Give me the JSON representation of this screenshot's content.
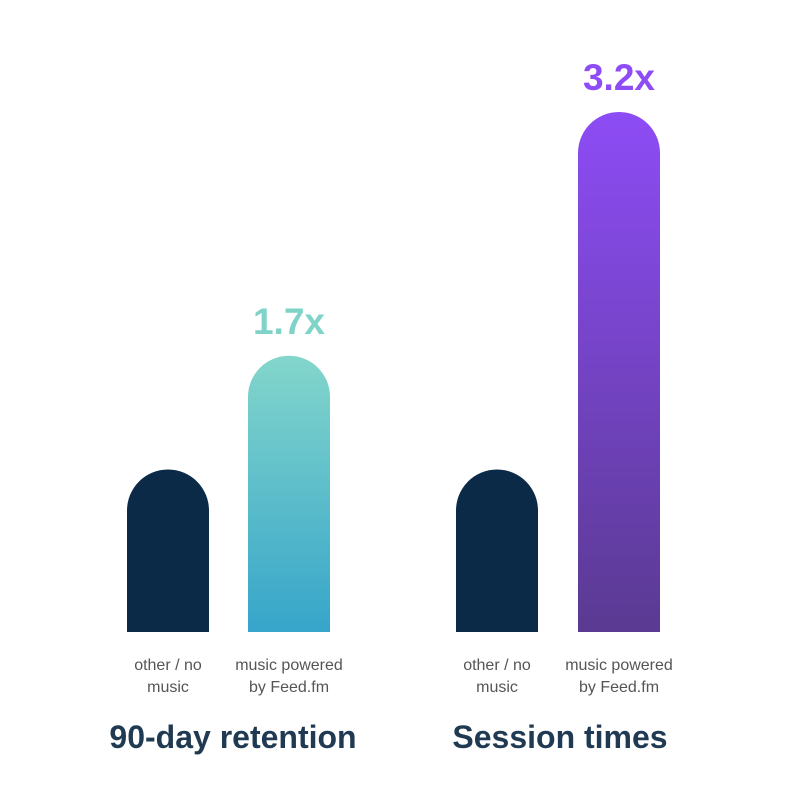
{
  "chart_data": [
    {
      "type": "bar",
      "title": "90-day retention",
      "categories": [
        "other / no music",
        "music powered by Feed.fm"
      ],
      "category_lines": [
        [
          "other / no",
          "music"
        ],
        [
          "music powered",
          "by Feed.fm"
        ]
      ],
      "values": [
        1.0,
        1.7
      ],
      "data_labels": [
        "",
        "1.7x"
      ],
      "ylim": [
        0,
        3.2
      ],
      "grid": false,
      "legend": "none",
      "colors": {
        "baseline": "#0b2a47",
        "highlight_top": "#83d6cb",
        "highlight_bottom": "#36a5ca",
        "label": "#7fd3c7"
      }
    },
    {
      "type": "bar",
      "title": "Session times",
      "categories": [
        "other / no music",
        "music powered by Feed.fm"
      ],
      "category_lines": [
        [
          "other / no",
          "music"
        ],
        [
          "music powered",
          "by Feed.fm"
        ]
      ],
      "values": [
        1.0,
        3.2
      ],
      "data_labels": [
        "",
        "3.2x"
      ],
      "ylim": [
        0,
        3.2
      ],
      "grid": false,
      "legend": "none",
      "colors": {
        "baseline": "#0b2a47",
        "highlight_top": "#8d4cf5",
        "highlight_bottom": "#5a3a92",
        "label": "#8d4cf5"
      }
    }
  ],
  "style": {
    "category_text_color": "#555555",
    "title_color": "#1f3a52"
  }
}
